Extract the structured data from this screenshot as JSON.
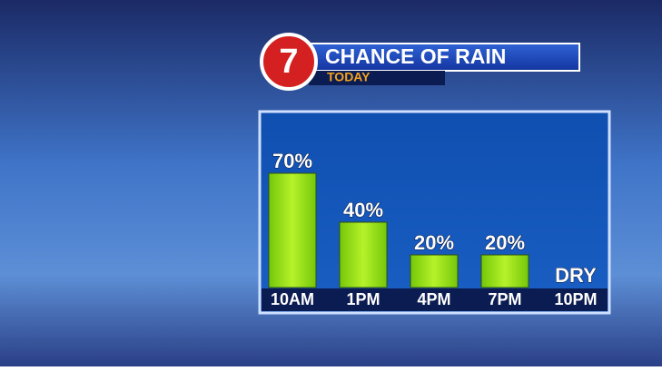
{
  "chart_data": {
    "type": "bar",
    "title": "CHANCE OF RAIN",
    "subtitle": "TODAY",
    "logo": "7",
    "categories": [
      "10AM",
      "1PM",
      "4PM",
      "7PM",
      "10PM"
    ],
    "values": [
      70,
      40,
      20,
      20,
      0
    ],
    "value_labels": [
      "70%",
      "40%",
      "20%",
      "20%",
      "DRY"
    ],
    "color": "#9be21c"
  }
}
